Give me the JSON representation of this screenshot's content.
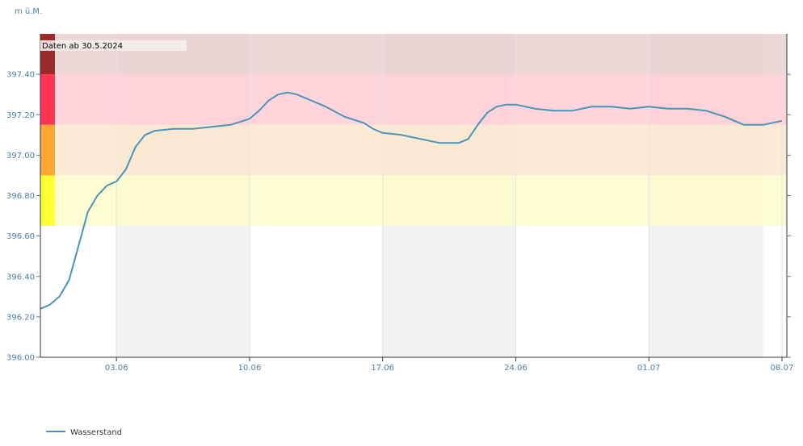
{
  "chart_data": {
    "type": "line",
    "y_unit": "m ü.M.",
    "ylim": [
      396.0,
      397.6
    ],
    "y_ticks": [
      "396.00",
      "396.20",
      "396.40",
      "396.60",
      "396.80",
      "397.00",
      "397.20",
      "397.40"
    ],
    "y_tick_values": [
      396.0,
      396.2,
      396.4,
      396.6,
      396.8,
      397.0,
      397.2,
      397.4
    ],
    "x_start": "2024-05-30",
    "x_end": "2024-07-08",
    "x_ticks": [
      "03.06",
      "10.06",
      "17.06",
      "24.06",
      "01.07",
      "08.07"
    ],
    "x_tick_dates": [
      "2024-06-03",
      "2024-06-10",
      "2024-06-17",
      "2024-06-24",
      "2024-07-01",
      "2024-07-08"
    ],
    "shaded_weeks": [
      [
        "2024-06-03",
        "2024-06-10"
      ],
      [
        "2024-06-17",
        "2024-06-24"
      ],
      [
        "2024-07-01",
        "2024-07-07"
      ]
    ],
    "danger_levels": [
      {
        "from": 397.4,
        "to": 397.6,
        "color": "#9b2b2b",
        "band_color": "#e9cfcf"
      },
      {
        "from": 397.15,
        "to": 397.4,
        "color": "#ff3652",
        "band_color": "#ffccd3"
      },
      {
        "from": 396.9,
        "to": 397.15,
        "color": "#ffa531",
        "band_color": "#fbe7cc"
      },
      {
        "from": 396.65,
        "to": 396.9,
        "color": "#ffff33",
        "band_color": "#fdfccb"
      }
    ],
    "annotation": "Daten ab 30.5.2024",
    "series": [
      {
        "name": "Wasserstand",
        "color": "#4b93b8",
        "points": [
          [
            "2024-05-30 00:00",
            396.24
          ],
          [
            "2024-05-30 12:00",
            396.26
          ],
          [
            "2024-05-31 00:00",
            396.3
          ],
          [
            "2024-05-31 12:00",
            396.38
          ],
          [
            "2024-06-01 00:00",
            396.55
          ],
          [
            "2024-06-01 12:00",
            396.72
          ],
          [
            "2024-06-02 00:00",
            396.8
          ],
          [
            "2024-06-02 12:00",
            396.85
          ],
          [
            "2024-06-03 00:00",
            396.87
          ],
          [
            "2024-06-03 12:00",
            396.93
          ],
          [
            "2024-06-04 00:00",
            397.04
          ],
          [
            "2024-06-04 12:00",
            397.1
          ],
          [
            "2024-06-05 00:00",
            397.12
          ],
          [
            "2024-06-06 00:00",
            397.13
          ],
          [
            "2024-06-07 00:00",
            397.13
          ],
          [
            "2024-06-08 00:00",
            397.14
          ],
          [
            "2024-06-09 00:00",
            397.15
          ],
          [
            "2024-06-10 00:00",
            397.18
          ],
          [
            "2024-06-10 12:00",
            397.22
          ],
          [
            "2024-06-11 00:00",
            397.27
          ],
          [
            "2024-06-11 12:00",
            397.3
          ],
          [
            "2024-06-12 00:00",
            397.31
          ],
          [
            "2024-06-12 12:00",
            397.3
          ],
          [
            "2024-06-13 00:00",
            397.28
          ],
          [
            "2024-06-14 00:00",
            397.24
          ],
          [
            "2024-06-15 00:00",
            397.19
          ],
          [
            "2024-06-16 00:00",
            397.16
          ],
          [
            "2024-06-16 12:00",
            397.13
          ],
          [
            "2024-06-17 00:00",
            397.11
          ],
          [
            "2024-06-18 00:00",
            397.1
          ],
          [
            "2024-06-19 00:00",
            397.08
          ],
          [
            "2024-06-20 00:00",
            397.06
          ],
          [
            "2024-06-21 00:00",
            397.06
          ],
          [
            "2024-06-21 12:00",
            397.08
          ],
          [
            "2024-06-22 00:00",
            397.15
          ],
          [
            "2024-06-22 12:00",
            397.21
          ],
          [
            "2024-06-23 00:00",
            397.24
          ],
          [
            "2024-06-23 12:00",
            397.25
          ],
          [
            "2024-06-24 00:00",
            397.25
          ],
          [
            "2024-06-25 00:00",
            397.23
          ],
          [
            "2024-06-26 00:00",
            397.22
          ],
          [
            "2024-06-27 00:00",
            397.22
          ],
          [
            "2024-06-28 00:00",
            397.24
          ],
          [
            "2024-06-29 00:00",
            397.24
          ],
          [
            "2024-06-30 00:00",
            397.23
          ],
          [
            "2024-07-01 00:00",
            397.24
          ],
          [
            "2024-07-02 00:00",
            397.23
          ],
          [
            "2024-07-03 00:00",
            397.23
          ],
          [
            "2024-07-04 00:00",
            397.22
          ],
          [
            "2024-07-05 00:00",
            397.19
          ],
          [
            "2024-07-06 00:00",
            397.15
          ],
          [
            "2024-07-07 00:00",
            397.15
          ],
          [
            "2024-07-07 12:00",
            397.16
          ],
          [
            "2024-07-08 00:00",
            397.17
          ]
        ]
      }
    ],
    "legend_position": "bottom-left",
    "grid": "vertical-only"
  },
  "colors": {
    "axis_text": "#4a7fa8",
    "week_shade": "#f2f2f2",
    "week_line": "#e3e3e3",
    "axis_line": "#333333"
  }
}
